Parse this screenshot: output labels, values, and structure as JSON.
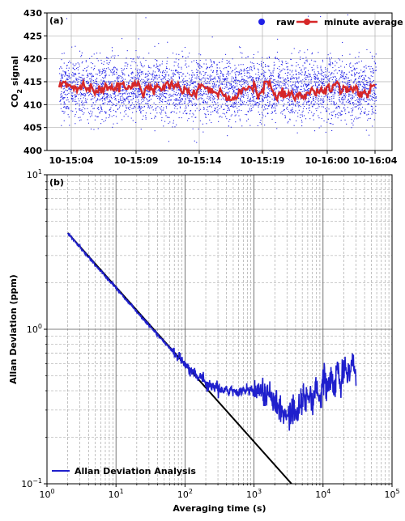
{
  "chart_data": [
    {
      "panel_label": "(a)",
      "type": "scatter",
      "ylabel_main": "CO",
      "ylabel_sub": "2",
      "ylabel_rest": " signal",
      "xlabel": "",
      "ylim": [
        400,
        430
      ],
      "yticks": [
        "400",
        "405",
        "410",
        "415",
        "420",
        "425",
        "430"
      ],
      "xticks": [
        "10-15:04",
        "10-15:09",
        "10-15:14",
        "10-15:19",
        "10-16:00",
        "10-16:04"
      ],
      "grid": true,
      "legend": {
        "placement": "top-right",
        "entries": [
          "raw",
          "minute average"
        ]
      },
      "series": [
        {
          "name": "raw",
          "color": "#1f1fe6",
          "kind": "points",
          "center": 413.5,
          "spread": "about 405 to 422, outliers 401 to 430"
        },
        {
          "name": "minute average",
          "color": "#d62728",
          "kind": "line",
          "values_range": [
            411,
            415
          ]
        }
      ]
    },
    {
      "panel_label": "(b)",
      "type": "line",
      "xlabel": "Averaging time (s)",
      "ylabel": "Allan Deviation (ppm)",
      "xscale": "log",
      "yscale": "log",
      "xlim": [
        1,
        100000
      ],
      "ylim": [
        0.1,
        10
      ],
      "xticks": [
        {
          "base": "10",
          "exp": "0"
        },
        {
          "base": "10",
          "exp": "1"
        },
        {
          "base": "10",
          "exp": "2"
        },
        {
          "base": "10",
          "exp": "3"
        },
        {
          "base": "10",
          "exp": "4"
        },
        {
          "base": "10",
          "exp": "5"
        }
      ],
      "yticks": [
        {
          "base": "10",
          "exp": "−1"
        },
        {
          "base": "10",
          "exp": "0"
        },
        {
          "base": "10",
          "exp": "1"
        }
      ],
      "grid": true,
      "legend": {
        "placement": "bottom-left",
        "entries": [
          "Allan Deviation Analysis"
        ]
      },
      "series": [
        {
          "name": "Allan Deviation Analysis",
          "color": "#1f1fcc",
          "x": [
            2,
            3,
            5,
            10,
            20,
            40,
            70,
            100,
            150,
            200,
            300,
            500,
            700,
            1000,
            1500,
            2000,
            2500,
            3000,
            4000,
            5000,
            7000,
            10000,
            15000,
            20000,
            25000,
            30000
          ],
          "y": [
            4.2,
            3.4,
            2.6,
            1.85,
            1.3,
            0.92,
            0.7,
            0.6,
            0.5,
            0.45,
            0.41,
            0.4,
            0.4,
            0.4,
            0.38,
            0.34,
            0.3,
            0.28,
            0.29,
            0.33,
            0.38,
            0.43,
            0.48,
            0.52,
            0.55,
            0.55
          ]
        },
        {
          "name": "",
          "color": "#000000",
          "x": [
            2,
            3500
          ],
          "y": [
            4.2,
            0.1
          ]
        }
      ]
    }
  ]
}
